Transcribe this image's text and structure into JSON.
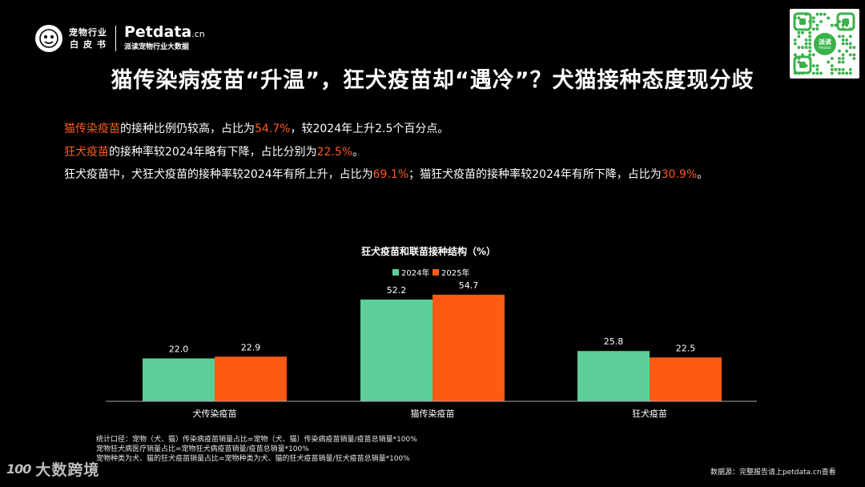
{
  "logo": {
    "cn_line1": "宠物行业",
    "cn_line2": "白 皮 书",
    "brand": "Petdata",
    "brand_suffix": ".cn",
    "brand_sub": "派读宠物行业大数据"
  },
  "qr": {
    "center_line1": "派读",
    "center_line2": "Petdata"
  },
  "title": "猫传染病疫苗“升温”，狂犬疫苗却“遇冷”？犬猫接种态度现分歧",
  "lines": {
    "l1": {
      "hl1": "猫传染疫苗",
      "t1": "的接种比例仍较高，占比为",
      "hl2": "54.7%",
      "t2": "，较2024年上升2.5个百分点。"
    },
    "l2": {
      "hl1": "狂犬疫苗",
      "t1": "的接种率较2024年略有下降，占比分别为",
      "hl2": "22.5%",
      "t2": "。"
    },
    "l3": {
      "t1": "狂犬疫苗中，犬狂犬疫苗的接种率较2024年有所上升，占比为",
      "hl1": "69.1%",
      "t2": "；猫狂犬疫苗的接种率较2024年有所下降，占比为",
      "hl2": "30.9%",
      "t3": "。"
    }
  },
  "chart_data": {
    "type": "bar",
    "title": "狂犬疫苗和联苗接种结构（%）",
    "categories": [
      "犬传染疫苗",
      "猫传染疫苗",
      "狂犬疫苗"
    ],
    "series": [
      {
        "name": "2024年",
        "values": [
          22.0,
          52.2,
          25.8
        ],
        "color": "#5ccf98"
      },
      {
        "name": "2025年",
        "values": [
          22.9,
          54.7,
          22.5
        ],
        "color": "#ff5a14"
      }
    ],
    "legend_position": "top-center",
    "value_labels": true,
    "grid": false,
    "ylim": [
      0,
      60
    ]
  },
  "notes": [
    "统计口径：宠物（犬、猫）传染病疫苗销量占比=宠物（犬、猫）传染病疫苗销量/疫苗总销量*100%",
    "宠物狂犬病医疗销量占比=宠物狂犬病疫苗销量/疫苗总销量*100%",
    "宠物种类为犬、猫的狂犬疫苗销量占比=宠物种类为犬、猫的狂犬疫苗销量/狂犬疫苗总销量*100%"
  ],
  "source": "数据源：完整报告请上petdata.cn查看",
  "watermark": {
    "mark": "100",
    "text": "大数跨境"
  },
  "colors": {
    "highlight": "#ff5a1f",
    "axis": "#aaaaaa"
  }
}
